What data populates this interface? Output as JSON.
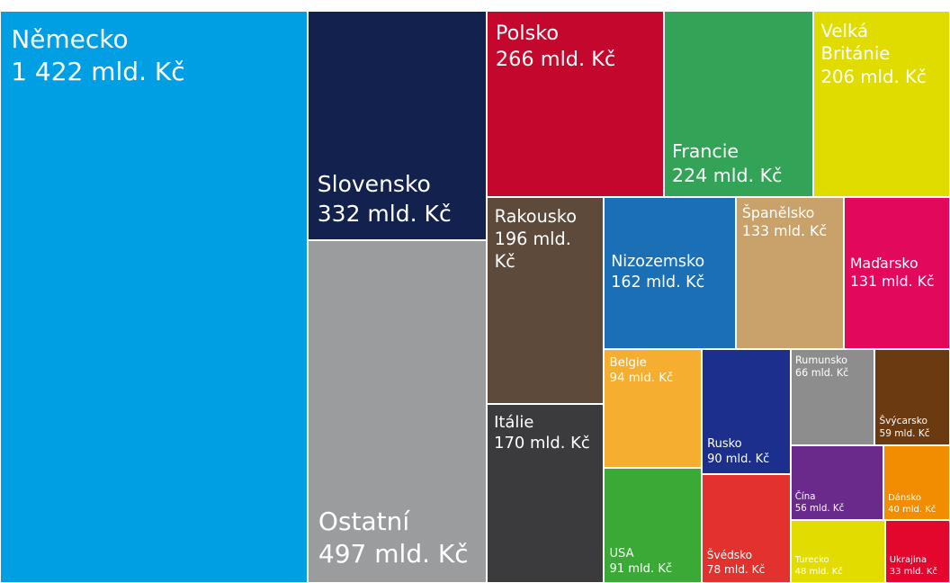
{
  "chart_data": {
    "type": "treemap",
    "categories": [
      "Německo",
      "Slovensko",
      "Ostatní",
      "Polsko",
      "Francie",
      "Velká Británie",
      "Rakousko",
      "Itálie",
      "Nizozemsko",
      "Španělsko",
      "Maďarsko",
      "Belgie",
      "USA",
      "Rusko",
      "Švédsko",
      "Rumunsko",
      "Švýcarsko",
      "Čína",
      "Dánsko",
      "Turecko",
      "Ukrajina"
    ],
    "values": [
      1422,
      332,
      497,
      266,
      224,
      206,
      196,
      170,
      162,
      133,
      131,
      94,
      91,
      90,
      78,
      66,
      59,
      56,
      40,
      48,
      33
    ],
    "value_labels": [
      "1 422 mld. Kč",
      "332 mld. Kč",
      "497 mld. Kč",
      "266 mld. Kč",
      "224 mld. Kč",
      "206 mld. Kč",
      "196 mld. Kč",
      "170 mld. Kč",
      "162 mld. Kč",
      "133 mld. Kč",
      "131 mld. Kč",
      "94 mld. Kč",
      "91 mld. Kč",
      "90 mld. Kč",
      "78 mld. Kč",
      "66 mld. Kč",
      "59 mld. Kč",
      "56 mld. Kč",
      "40 mld. Kč",
      "48 mld. Kč",
      "33 mld. Kč"
    ],
    "colors": [
      "#009fe3",
      "#13214f",
      "#9b9c9e",
      "#c4072c",
      "#33a457",
      "#e0dc00",
      "#5e4a3a",
      "#3b3b3d",
      "#1a6fb5",
      "#c9a16a",
      "#e2085b",
      "#f5ae2f",
      "#3aa935",
      "#1c2f8c",
      "#e3322d",
      "#8d8d8e",
      "#6b3a10",
      "#6a2a8c",
      "#f28c00",
      "#e3dc00",
      "#e3062d"
    ]
  }
}
